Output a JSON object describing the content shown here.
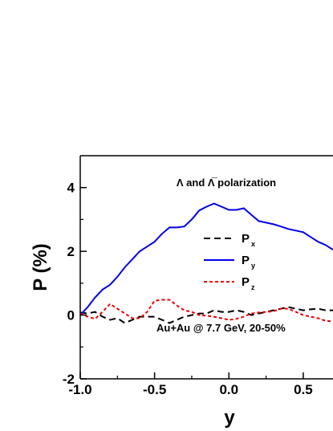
{
  "chart_data": {
    "type": "line",
    "title": "",
    "xlabel": "y",
    "ylabel": "P (%)",
    "xlim": [
      -1.0,
      0.7
    ],
    "ylim": [
      -2,
      5
    ],
    "x_ticks": [
      "-1.0",
      "-0.5",
      "0.0",
      "0.5"
    ],
    "x_tick_values": [
      -1.0,
      -0.5,
      0.0,
      0.5
    ],
    "y_ticks": [
      "-2",
      "0",
      "2",
      "4"
    ],
    "y_tick_values": [
      -2,
      0,
      2,
      4
    ],
    "grid": false,
    "legend_position": "center",
    "annotations": {
      "polarization": "Λ and Λ̅ polarization",
      "system": "Au+Au @ 7.7 GeV, 20-50%"
    },
    "x": [
      -1.0,
      -0.95,
      -0.9,
      -0.85,
      -0.8,
      -0.75,
      -0.7,
      -0.65,
      -0.6,
      -0.55,
      -0.5,
      -0.45,
      -0.4,
      -0.35,
      -0.3,
      -0.25,
      -0.2,
      -0.15,
      -0.1,
      -0.05,
      0.0,
      0.05,
      0.1,
      0.15,
      0.2,
      0.25,
      0.3,
      0.35,
      0.4,
      0.45,
      0.5,
      0.55,
      0.6,
      0.65,
      0.7
    ],
    "series": [
      {
        "name": "P",
        "subscript": "x",
        "color": "#000000",
        "style": "dashed",
        "values": [
          0.08,
          0.05,
          0.1,
          -0.05,
          -0.15,
          -0.1,
          -0.25,
          -0.15,
          -0.05,
          -0.05,
          -0.05,
          -0.15,
          -0.25,
          -0.15,
          -0.05,
          0.0,
          0.05,
          0.05,
          0.15,
          0.1,
          0.1,
          0.15,
          0.1,
          0.0,
          0.05,
          0.1,
          0.15,
          0.2,
          0.25,
          0.2,
          0.15,
          0.18,
          0.2,
          0.15,
          0.15
        ]
      },
      {
        "name": "P",
        "subscript": "y",
        "color": "#0000ee",
        "style": "solid",
        "values": [
          0.0,
          0.25,
          0.55,
          0.8,
          0.95,
          1.2,
          1.5,
          1.75,
          2.0,
          2.15,
          2.3,
          2.55,
          2.75,
          2.75,
          2.78,
          3.0,
          3.28,
          3.4,
          3.5,
          3.4,
          3.3,
          3.3,
          3.35,
          3.15,
          2.95,
          2.9,
          2.85,
          2.78,
          2.7,
          2.65,
          2.6,
          2.45,
          2.3,
          2.2,
          2.05
        ]
      },
      {
        "name": "P",
        "subscript": "z",
        "color": "#ee0000",
        "style": "dotted",
        "values": [
          0.05,
          -0.05,
          -0.12,
          0.1,
          0.35,
          0.2,
          0.05,
          -0.1,
          -0.1,
          0.1,
          0.45,
          0.48,
          0.48,
          0.3,
          0.15,
          0.1,
          0.0,
          -0.02,
          -0.05,
          -0.1,
          -0.15,
          -0.12,
          -0.05,
          0.05,
          0.08,
          0.1,
          0.12,
          0.2,
          0.2,
          0.1,
          0.0,
          -0.05,
          -0.1,
          -0.18,
          -0.2
        ]
      }
    ]
  }
}
